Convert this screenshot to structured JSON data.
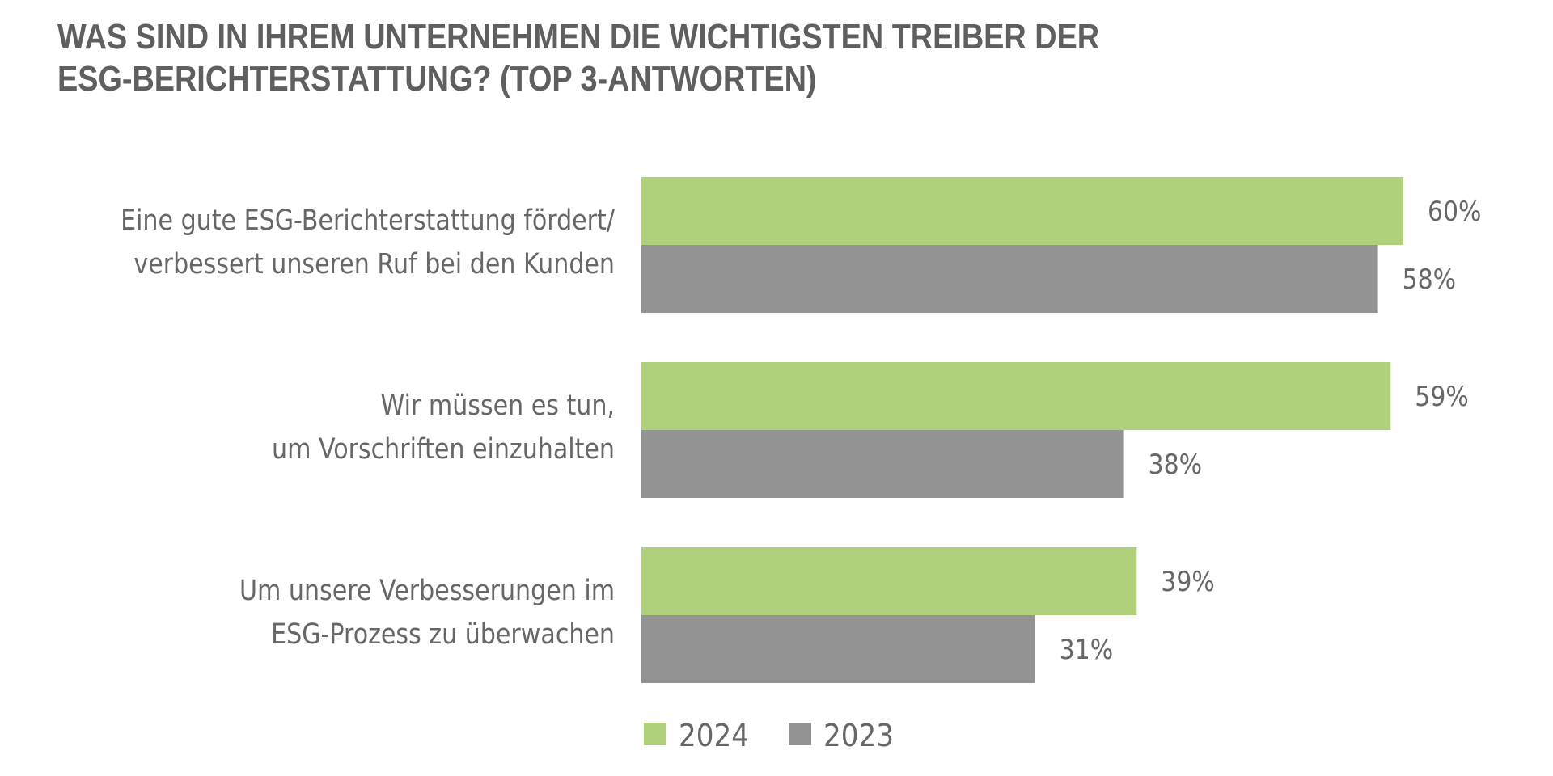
{
  "chart_data": {
    "type": "bar",
    "orientation": "horizontal",
    "title": "WAS SIND IN IHREM UNTERNEHMEN DIE WICHTIGSTEN TREIBER DER ESG-BERICHTERSTATTUNG? (TOP 3-ANTWORTEN)",
    "title_lines": [
      "WAS SIND IN IHREM UNTERNEHMEN DIE WICHTIGSTEN TREIBER DER",
      "ESG-BERICHTERSTATTUNG? (TOP 3-ANTWORTEN)"
    ],
    "categories": [
      "Eine gute ESG-Berichterstattung fördert/ verbessert unseren Ruf bei den Kunden",
      "Wir müssen es tun, um Vorschriften einzuhalten",
      "Um unsere Verbesserungen im ESG-Prozess zu überwachen"
    ],
    "category_lines": [
      [
        "Eine gute ESG-Berichterstattung fördert/",
        "verbessert unseren Ruf bei den Kunden"
      ],
      [
        "Wir müssen es tun, ",
        "um Vorschriften einzuhalten"
      ],
      [
        "Um unsere Verbesserungen im ",
        "ESG-Prozess zu überwachen"
      ]
    ],
    "series": [
      {
        "name": "2024",
        "color": "#b0d07c",
        "values": [
          60,
          59,
          39
        ]
      },
      {
        "name": "2023",
        "color": "#939393",
        "values": [
          58,
          38,
          31
        ]
      }
    ],
    "value_suffix": "%",
    "xlabel": "",
    "ylabel": "",
    "xlim": [
      0,
      100
    ],
    "grid": false,
    "axes_visible": false,
    "data_labels": true,
    "legend_position": "bottom"
  }
}
